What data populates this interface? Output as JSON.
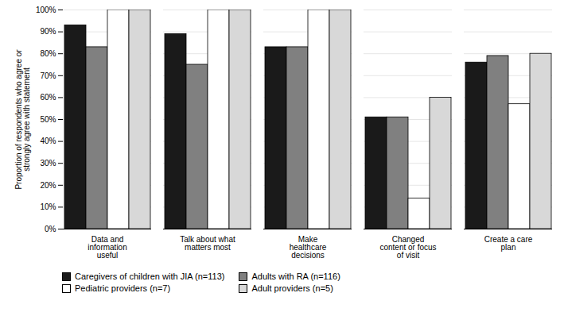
{
  "chart_data": {
    "type": "bar",
    "categories": [
      "Data and\ninformation\nuseful",
      "Talk about what\nmatters most",
      "Make\nhealthcare\ndecisions",
      "Changed\ncontent or focus\nof visit",
      "Create a care\nplan"
    ],
    "series": [
      {
        "name": "Caregivers of children with JIA (n=113)",
        "color": "#1a1a1a",
        "values": [
          93,
          89,
          83,
          51,
          76
        ]
      },
      {
        "name": "Adults with RA (n=116)",
        "color": "#808080",
        "values": [
          83,
          75,
          83,
          51,
          79
        ]
      },
      {
        "name": "Pediatric providers (n=7)",
        "color": "#ffffff",
        "values": [
          100,
          100,
          100,
          14,
          57
        ]
      },
      {
        "name": "Adult providers (n=5)",
        "color": "#d8d8d8",
        "values": [
          100,
          100,
          100,
          60,
          80
        ]
      }
    ],
    "ylabel": "Proportion of respondents who agree or\nstrongly agree with statement",
    "ylim": [
      0,
      100
    ],
    "yticks": [
      {
        "value": 0,
        "label": "0%"
      },
      {
        "value": 10,
        "label": "10%"
      },
      {
        "value": 20,
        "label": "20%"
      },
      {
        "value": 30,
        "label": "30%"
      },
      {
        "value": 40,
        "label": "40%"
      },
      {
        "value": 50,
        "label": "50%"
      },
      {
        "value": 60,
        "label": "60%"
      },
      {
        "value": 70,
        "label": "70%"
      },
      {
        "value": 80,
        "label": "80%"
      },
      {
        "value": 90,
        "label": "90%"
      },
      {
        "value": 100,
        "label": "100%"
      }
    ],
    "grid": true,
    "legend": "bottom"
  }
}
